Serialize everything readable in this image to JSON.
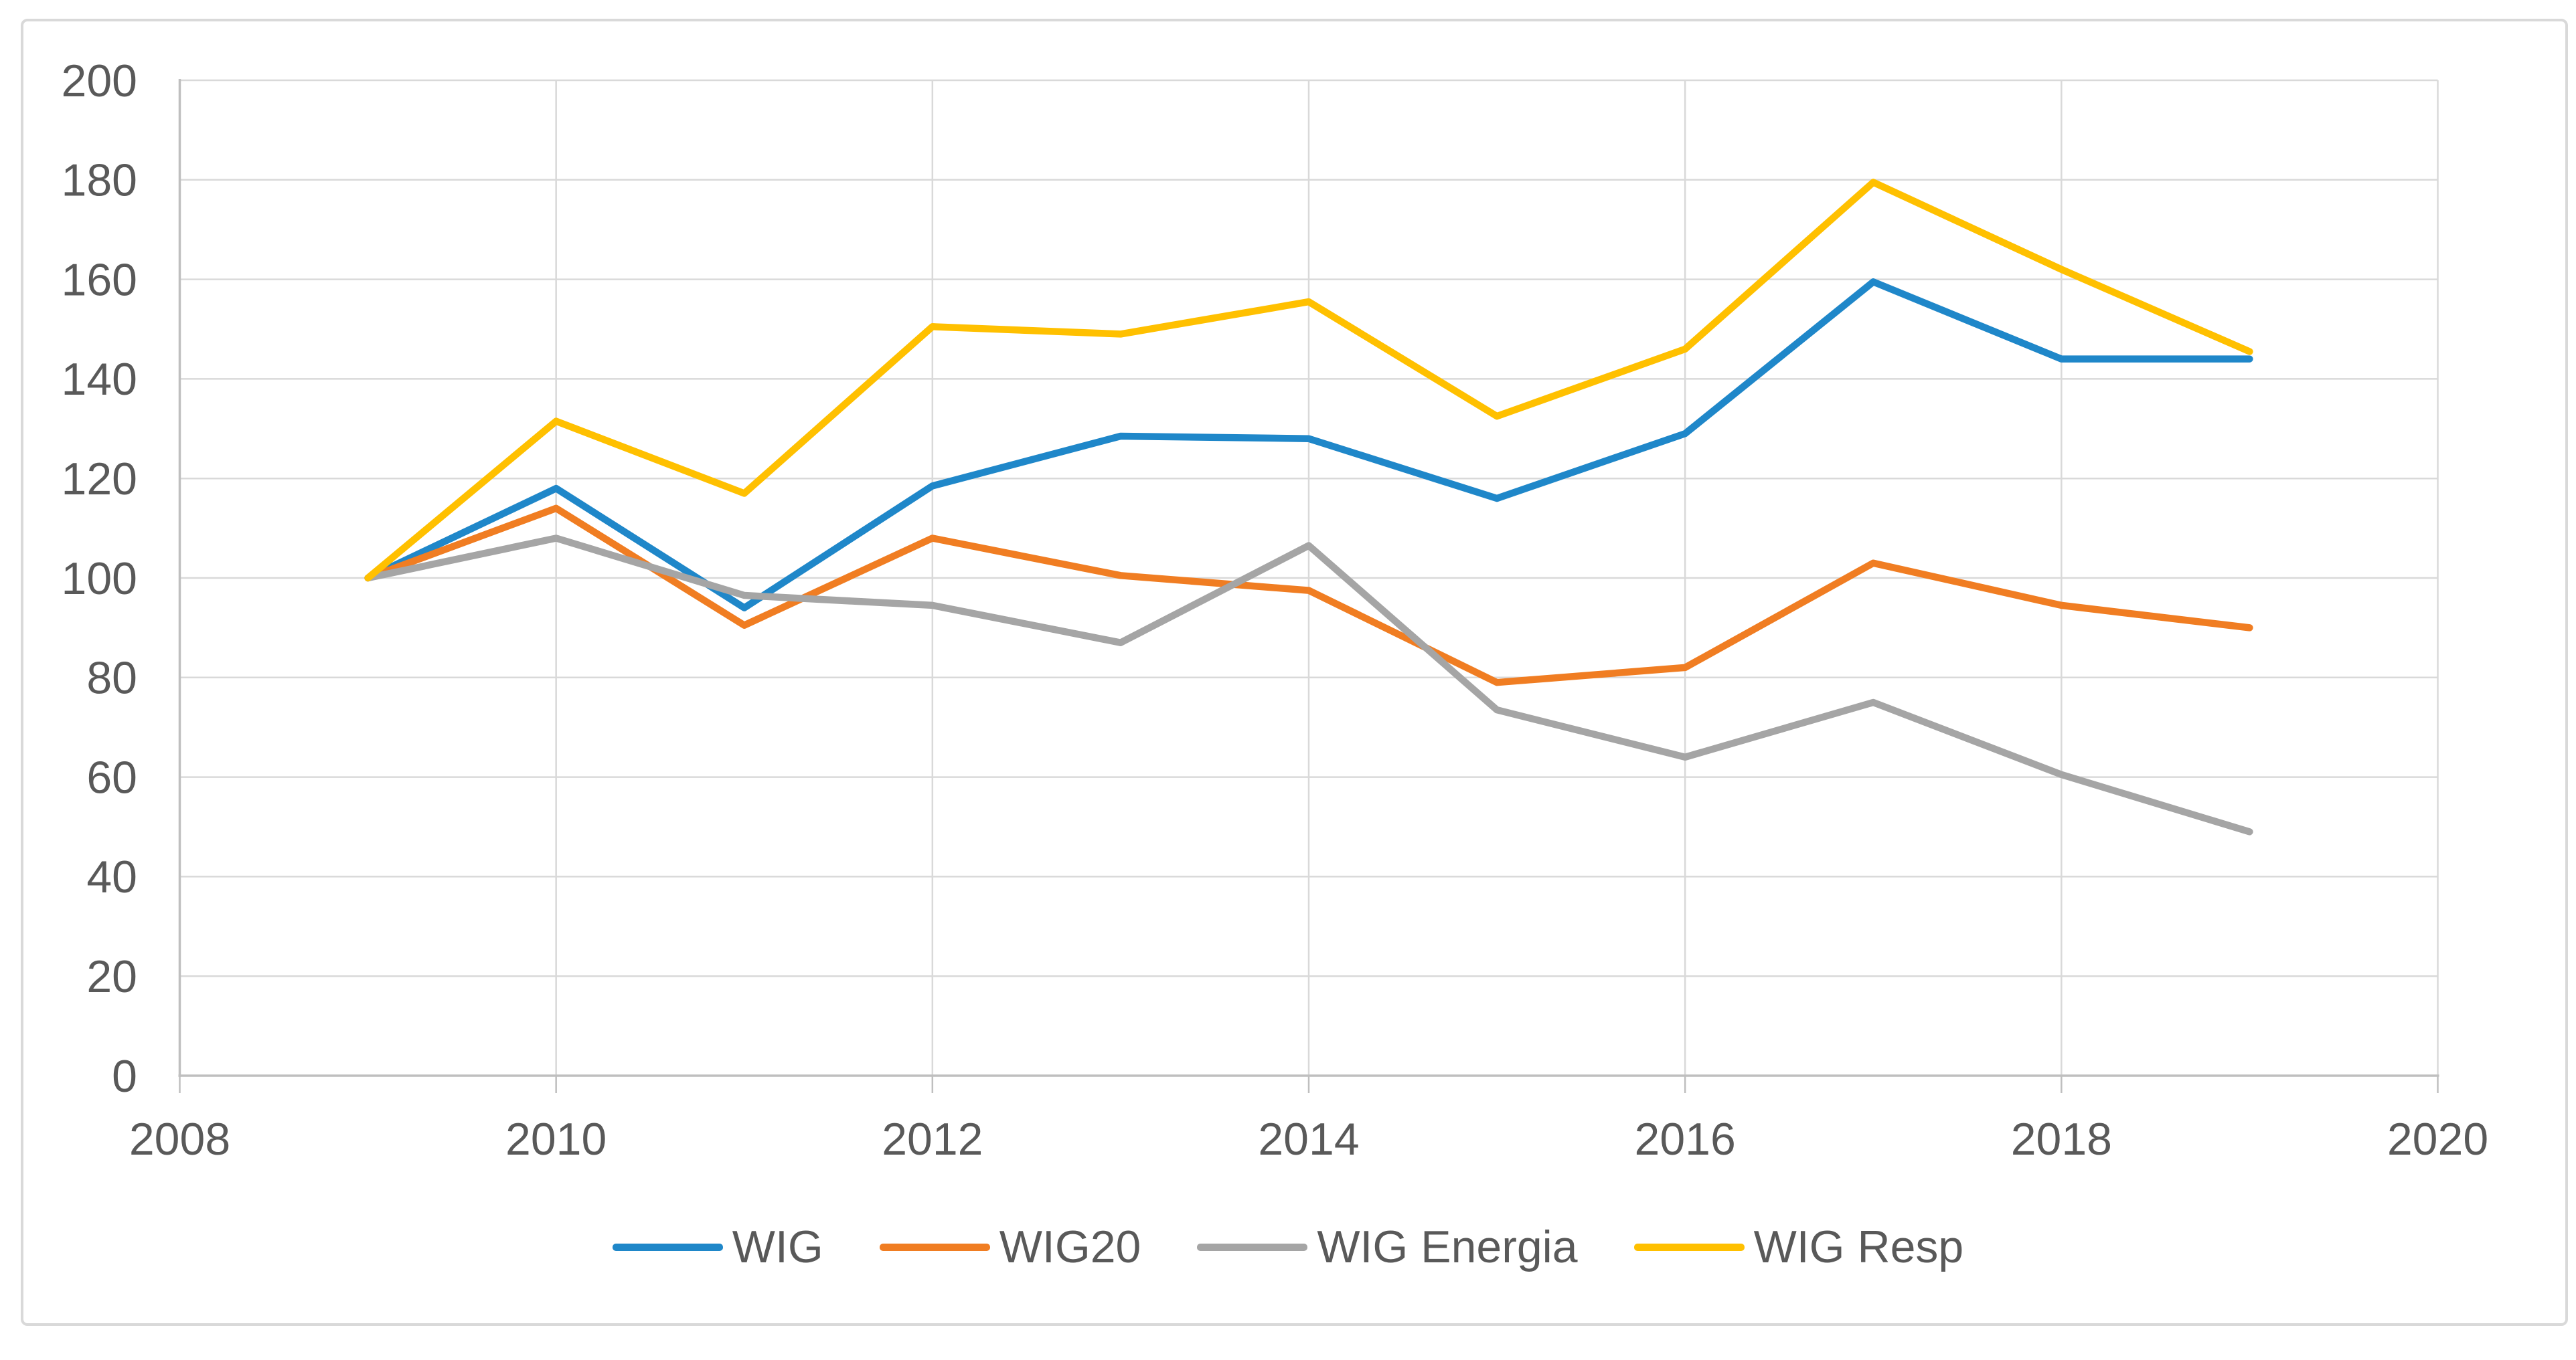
{
  "palette": {
    "background": "#FFFFFF",
    "figure_border": "#D9D9D9",
    "grid": "#D9D9D9",
    "axis": "#BFBFBF",
    "text": "#595959"
  },
  "chart_data": {
    "type": "line",
    "title": "",
    "xlabel": "",
    "ylabel": "",
    "grid": true,
    "legend_position": "bottom",
    "x": [
      2009,
      2010,
      2011,
      2012,
      2013,
      2014,
      2015,
      2016,
      2017,
      2018,
      2019
    ],
    "x_axis": {
      "range": [
        2008,
        2020
      ],
      "ticks": [
        2008,
        2010,
        2012,
        2014,
        2016,
        2018,
        2020
      ]
    },
    "y_axis": {
      "range": [
        0,
        200
      ],
      "ticks": [
        0,
        20,
        40,
        60,
        80,
        100,
        120,
        140,
        160,
        180,
        200
      ]
    },
    "series": [
      {
        "name": "WIG",
        "color": "#1F87C9",
        "values": [
          100,
          118,
          94,
          118.5,
          128.5,
          128,
          116,
          129,
          159.5,
          144,
          144
        ]
      },
      {
        "name": "WIG20",
        "color": "#F07D22",
        "values": [
          100,
          114,
          90.5,
          108,
          100.5,
          97.5,
          79,
          82,
          103,
          94.5,
          90
        ]
      },
      {
        "name": "WIG Energia",
        "color": "#A5A5A5",
        "values": [
          100,
          108,
          96.5,
          94.5,
          87,
          106.5,
          73.5,
          64,
          75,
          60.5,
          49
        ]
      },
      {
        "name": "WIG Resp",
        "color": "#FFC000",
        "values": [
          100,
          131.5,
          117,
          150.5,
          149,
          155.5,
          132.5,
          146,
          179.5,
          162,
          145.5
        ]
      }
    ]
  }
}
